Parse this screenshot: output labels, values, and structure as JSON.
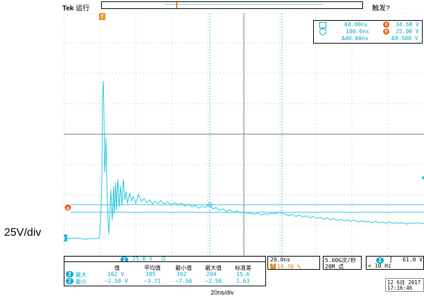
{
  "header": {
    "brand": "Tek",
    "run_state": "运行",
    "trigger_state": "触发?"
  },
  "cursor_readout": {
    "t1": "60.00ns",
    "t2": "100.0ns",
    "dt": "Δ40.00ns",
    "a_value": "34.50 V",
    "b_value": "25.00 V",
    "dv": "Δ9.500 V",
    "a_label": "a",
    "b_label": "b"
  },
  "channel": {
    "number": "2",
    "scale": "25.0 V",
    "coupling": "Ω",
    "color": "#00bcd4"
  },
  "timebase": {
    "scale": "20.0ns",
    "trigger_position": "10.30 %",
    "sample_rate": "5.00G次/秒",
    "record_length": "20M 点"
  },
  "trigger": {
    "source": "2",
    "slope": "∫",
    "level": "61.0 V",
    "freq": "< 10 Hz"
  },
  "stats": {
    "headers": [
      "值",
      "平均值",
      "最小值",
      "最大值",
      "标准差"
    ],
    "rows": [
      {
        "ch": "2",
        "name": "最大",
        "values": [
          "162 V",
          "185",
          "162",
          "204",
          "15.6"
        ]
      },
      {
        "ch": "2",
        "name": "最小",
        "values": [
          "−2.50 V",
          "−3.71",
          "−7.50",
          "−2.50",
          "1.63"
        ]
      }
    ]
  },
  "datetime": {
    "date": "12 6月  2017",
    "time": "17:16:46"
  },
  "side_labels": {
    "vertical": "25V/div",
    "horizontal": "20ns/div"
  },
  "markers": {
    "trigger_marker": "T",
    "ref_marker": "a",
    "ch_marker": "2"
  }
}
